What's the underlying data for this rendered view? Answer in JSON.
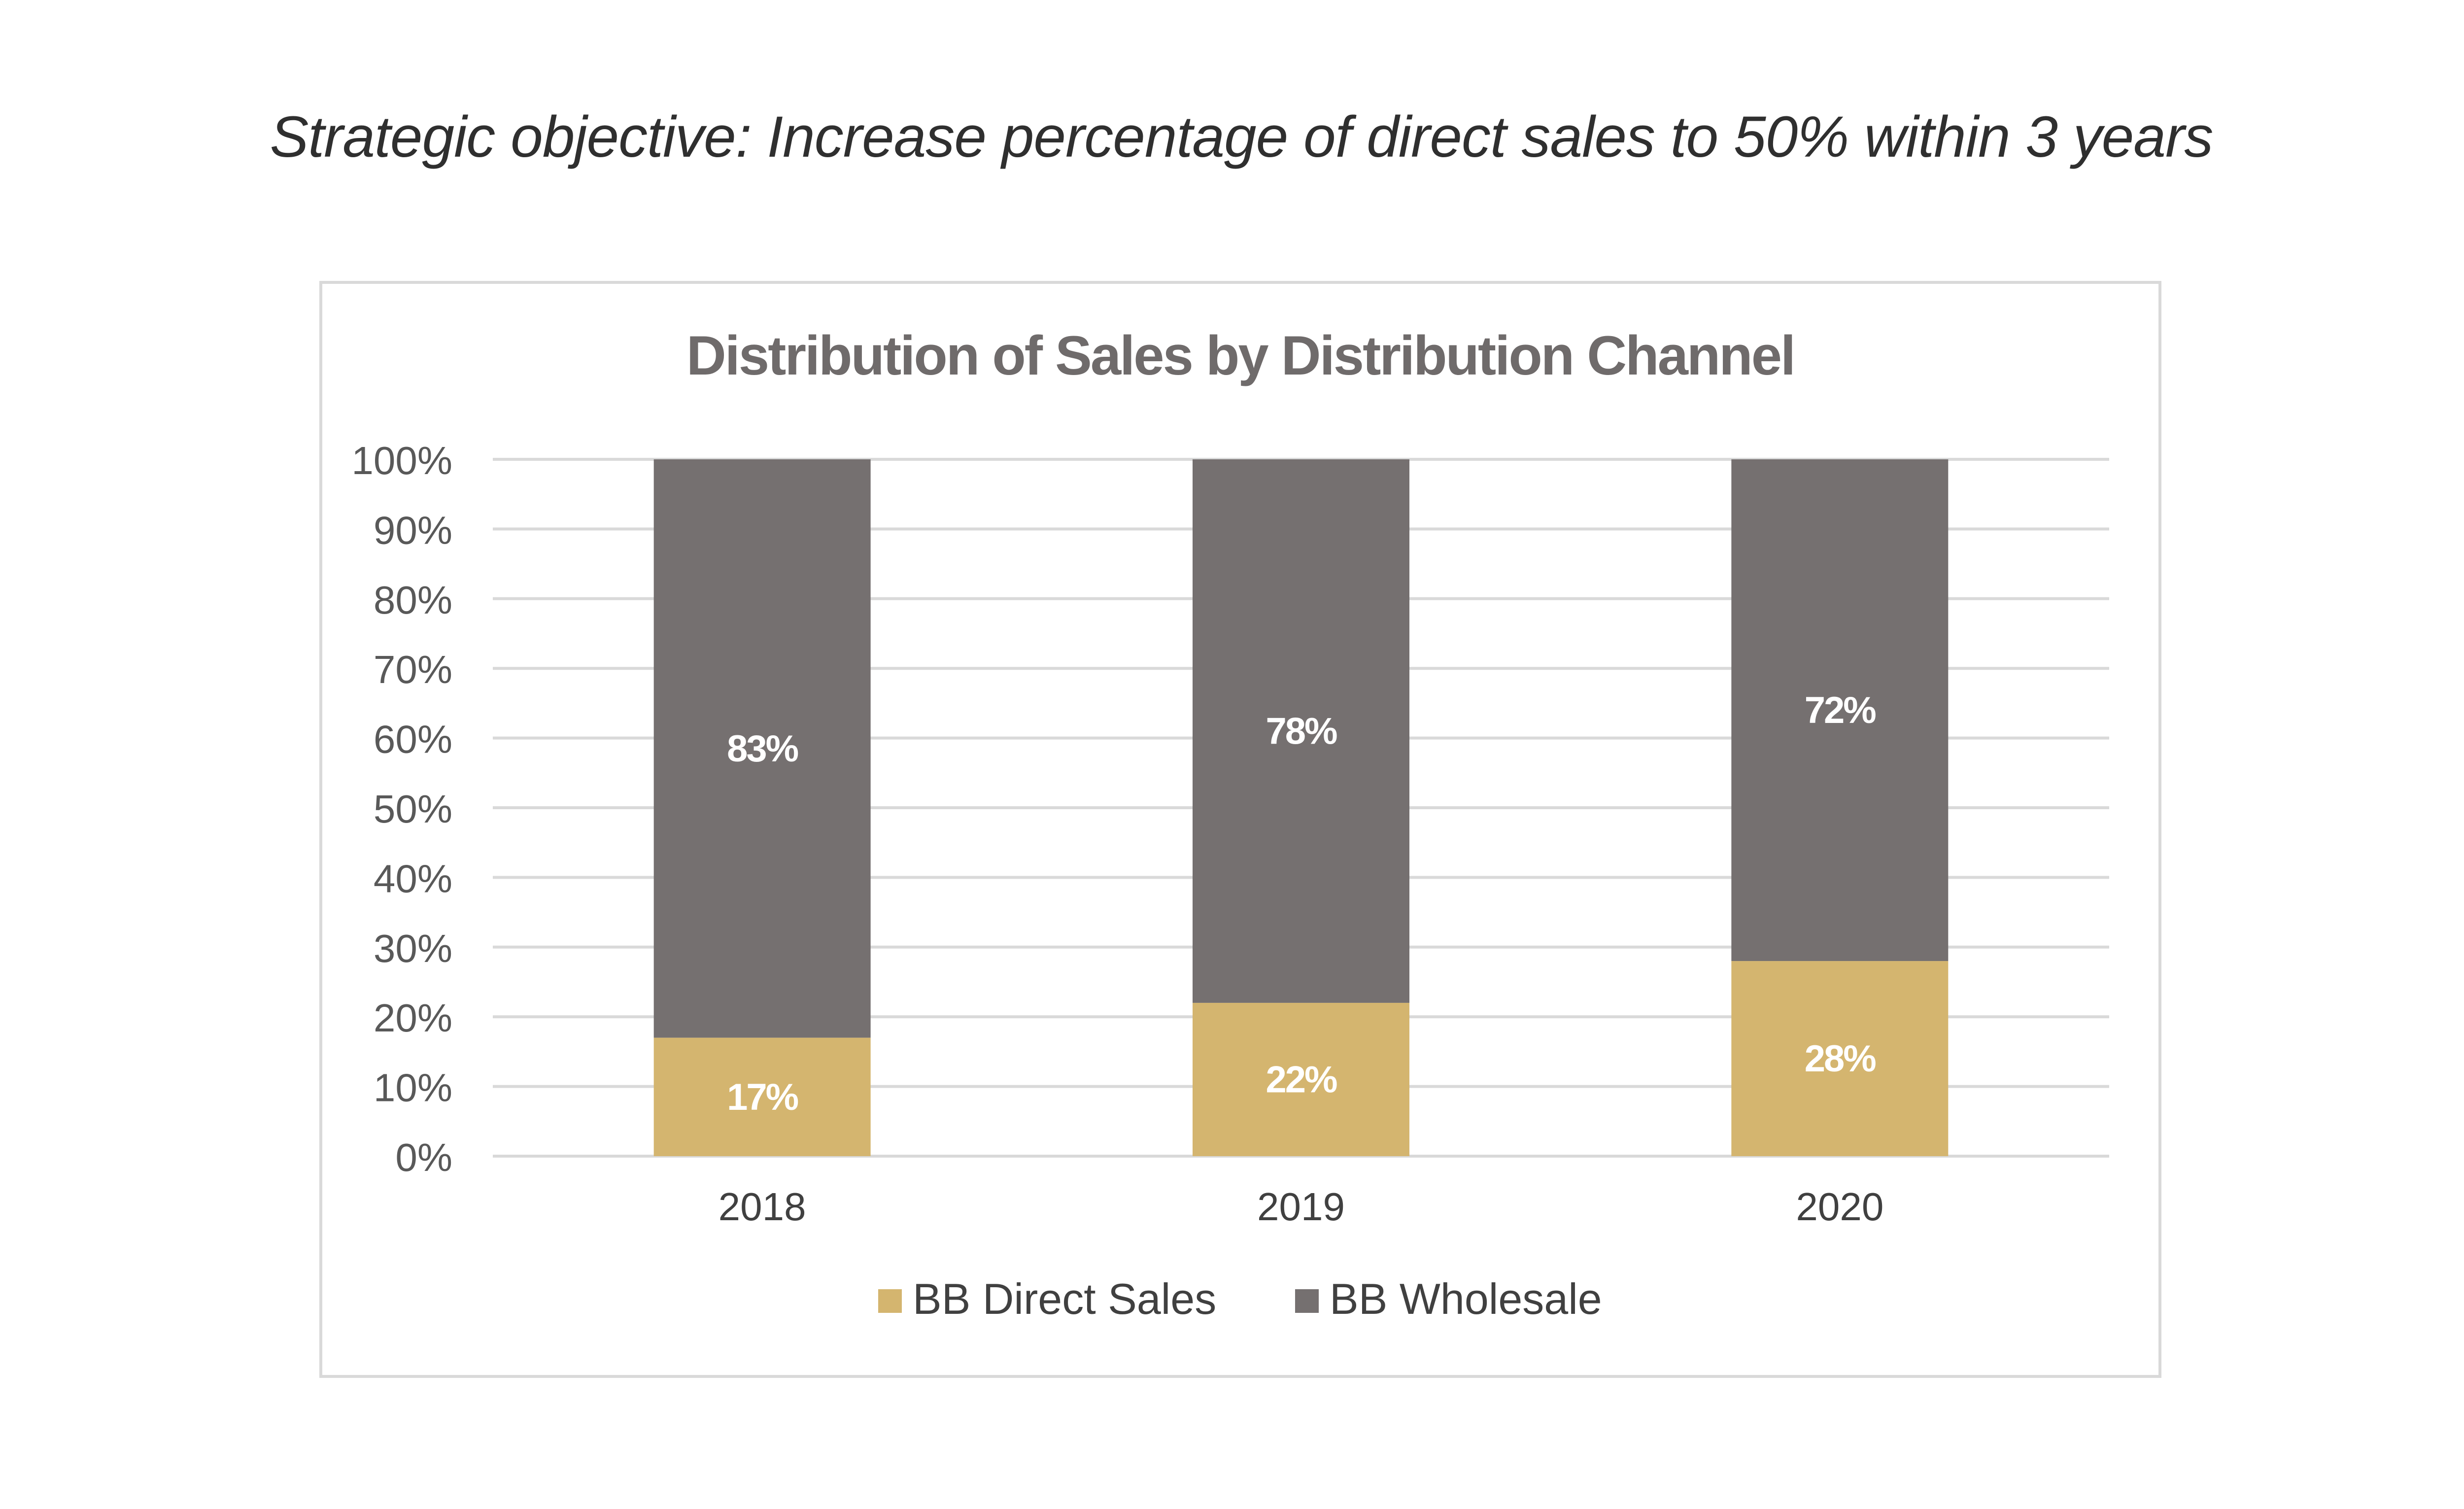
{
  "headline": "Strategic objective: Increase percentage of direct sales to 50% within 3 years",
  "chart_data": {
    "type": "bar",
    "stacked": true,
    "title": "Distribution of Sales by Distribution Channel",
    "xlabel": "",
    "ylabel": "",
    "categories": [
      "2018",
      "2019",
      "2020"
    ],
    "series": [
      {
        "name": "BB Direct Sales",
        "values": [
          17,
          22,
          28
        ],
        "labels": [
          "17%",
          "22%",
          "28%"
        ],
        "color": "#d4b56f"
      },
      {
        "name": "BB Wholesale",
        "values": [
          83,
          78,
          72
        ],
        "labels": [
          "83%",
          "78%",
          "72%"
        ],
        "color": "#757070"
      }
    ],
    "ylim": [
      0,
      100
    ],
    "yticks": [
      0,
      10,
      20,
      30,
      40,
      50,
      60,
      70,
      80,
      90,
      100
    ],
    "ytick_labels": [
      "0%",
      "10%",
      "20%",
      "30%",
      "40%",
      "50%",
      "60%",
      "70%",
      "80%",
      "90%",
      "100%"
    ],
    "grid": true,
    "legend_position": "bottom",
    "gridline_color": "#d9d9d9",
    "label_color": "#ffffff"
  }
}
